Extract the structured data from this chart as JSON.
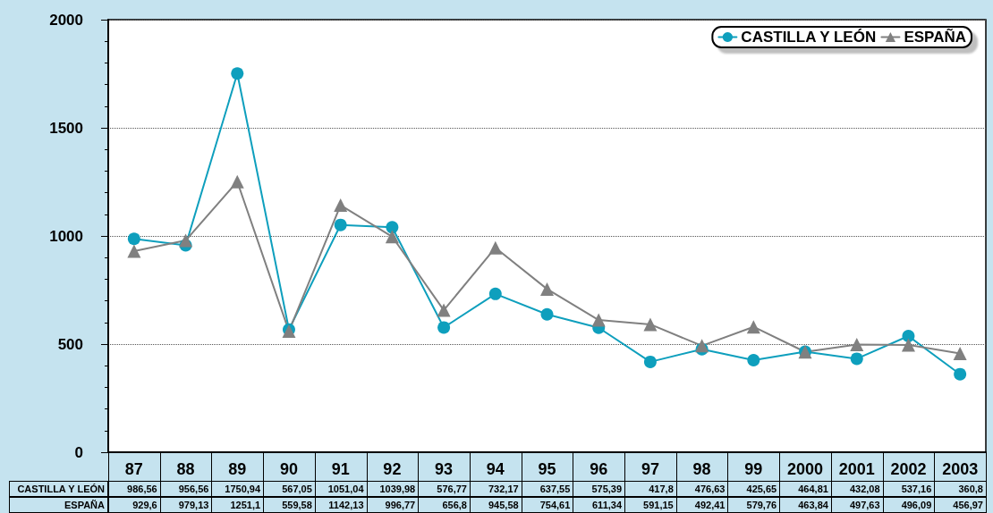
{
  "chart_data": {
    "type": "line",
    "categories": [
      "87",
      "88",
      "89",
      "90",
      "91",
      "92",
      "93",
      "94",
      "95",
      "96",
      "97",
      "98",
      "99",
      "2000",
      "2001",
      "2002",
      "2003"
    ],
    "series": [
      {
        "name": "CASTILLA Y LEÓN",
        "color": "#0e9fbd",
        "marker": "circle",
        "values": [
          986.56,
          956.56,
          1750.94,
          567.05,
          1051.04,
          1039.98,
          576.77,
          732.17,
          637.55,
          575.39,
          417.8,
          476.63,
          425.65,
          464.81,
          432.08,
          537.16,
          360.8
        ],
        "value_labels": [
          "986,56",
          "956,56",
          "1750,94",
          "567,05",
          "1051,04",
          "1039,98",
          "576,77",
          "732,17",
          "637,55",
          "575,39",
          "417,8",
          "476,63",
          "425,65",
          "464,81",
          "432,08",
          "537,16",
          "360,8"
        ]
      },
      {
        "name": "ESPAÑA",
        "color": "#808080",
        "marker": "triangle",
        "values": [
          929.6,
          979.13,
          1251.1,
          559.58,
          1142.13,
          996.77,
          656.8,
          945.58,
          754.61,
          611.34,
          591.15,
          492.41,
          579.76,
          463.84,
          497.63,
          496.09,
          456.97
        ],
        "value_labels": [
          "929,6",
          "979,13",
          "1251,1",
          "559,58",
          "1142,13",
          "996,77",
          "656,8",
          "945,58",
          "754,61",
          "611,34",
          "591,15",
          "492,41",
          "579,76",
          "463,84",
          "497,63",
          "496,09",
          "456,97"
        ]
      }
    ],
    "ylim": [
      0,
      2000
    ],
    "yticks": [
      0,
      500,
      1000,
      1500,
      2000
    ],
    "grid": "y",
    "legend": "top right",
    "line_style": "solid"
  }
}
